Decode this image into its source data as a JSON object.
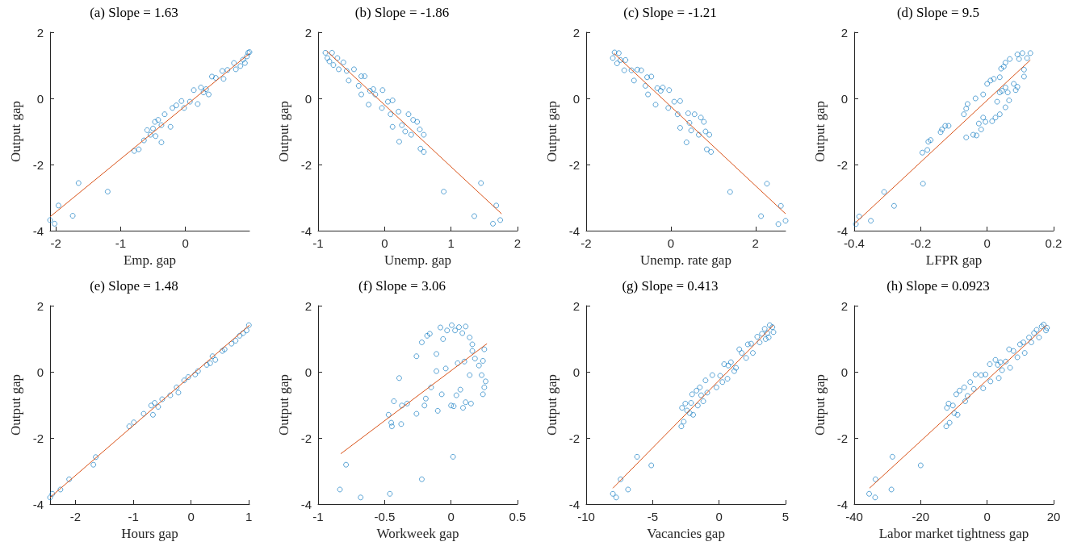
{
  "chart_data": [
    {
      "type": "scatter",
      "title": "(a) Slope = 1.63",
      "xlabel": "Emp. gap",
      "ylabel": "Output gap",
      "xlim": [
        -2.09,
        0.99
      ],
      "xticks": [
        -2,
        -1,
        0
      ],
      "ylim": [
        -4,
        2
      ],
      "yticks": [
        -4,
        -2,
        0,
        2
      ],
      "series": [
        {
          "marker": "circle",
          "color": "#0072bd",
          "x": [
            -2.09,
            -2.02,
            -1.96,
            -1.74,
            -1.65,
            -1.2,
            -0.79,
            -0.72,
            -0.64,
            -0.59,
            -0.54,
            -0.5,
            -0.46,
            -0.47,
            -0.42,
            -0.37,
            -0.37,
            -0.32,
            -0.23,
            -0.2,
            -0.14,
            -0.06,
            -0.02,
            0.07,
            0.19,
            0.13,
            0.24,
            0.28,
            0.32,
            0.36,
            0.41,
            0.47,
            0.57,
            0.59,
            0.65,
            0.75,
            0.78,
            0.85,
            0.89,
            0.92,
            0.95,
            0.97,
            0.99
          ],
          "values": [
            -3.68,
            -3.79,
            -3.24,
            -3.55,
            -2.56,
            -2.82,
            -1.59,
            -1.54,
            -1.27,
            -0.96,
            -1.1,
            -0.91,
            -1.14,
            -0.71,
            -0.65,
            -1.33,
            -0.81,
            -0.48,
            -0.86,
            -0.29,
            -0.21,
            -0.08,
            -0.29,
            -0.1,
            -0.17,
            0.25,
            0.33,
            0.18,
            0.28,
            0.12,
            0.66,
            0.62,
            0.83,
            0.59,
            0.86,
            1.07,
            0.88,
            0.98,
            1.17,
            1.07,
            1.27,
            1.38,
            1.4
          ]
        },
        {
          "type": "line",
          "color": "#d95319",
          "x": [
            -2.09,
            0.99
          ],
          "values": [
            -3.58,
            1.36
          ]
        }
      ]
    },
    {
      "type": "scatter",
      "title": "(b) Slope = -1.86",
      "xlabel": "Unemp. gap",
      "ylabel": "Output gap",
      "xlim": [
        -1,
        2
      ],
      "xticks": [
        -1,
        0,
        1,
        2
      ],
      "ylim": [
        -4,
        2
      ],
      "yticks": [
        -4,
        -2,
        0,
        2
      ],
      "series": [
        {
          "marker": "circle",
          "color": "#0072bd",
          "x": [
            -0.89,
            -0.86,
            -0.83,
            -0.79,
            -0.77,
            -0.71,
            -0.69,
            -0.62,
            -0.57,
            -0.54,
            -0.46,
            -0.39,
            -0.35,
            -0.3,
            -0.35,
            -0.24,
            -0.22,
            -0.17,
            -0.14,
            -0.03,
            -0.04,
            0.05,
            0.12,
            0.09,
            0.12,
            0.21,
            0.22,
            0.26,
            0.31,
            0.36,
            0.43,
            0.4,
            0.49,
            0.53,
            0.59,
            0.54,
            0.59,
            0.89,
            1.35,
            1.45,
            1.63,
            1.68,
            1.74
          ],
          "values": [
            1.38,
            1.22,
            1.12,
            1.38,
            1.01,
            1.22,
            0.88,
            1.09,
            0.83,
            0.54,
            0.88,
            0.38,
            0.67,
            0.67,
            0.12,
            -0.19,
            0.23,
            0.28,
            0.12,
            0.25,
            -0.29,
            -0.1,
            -0.06,
            -0.48,
            -0.86,
            -0.4,
            -1.31,
            -0.81,
            -1.0,
            -0.48,
            -0.65,
            -1.1,
            -0.71,
            -0.94,
            -1.1,
            -1.52,
            -1.62,
            -2.82,
            -3.56,
            -2.56,
            -3.79,
            -3.24,
            -3.68
          ]
        },
        {
          "type": "line",
          "color": "#d95319",
          "x": [
            -0.87,
            1.76
          ],
          "values": [
            1.43,
            -3.49
          ]
        }
      ]
    },
    {
      "type": "scatter",
      "title": "(c) Slope = -1.21",
      "xlabel": "Unemp. rate gap",
      "ylabel": "Output gap",
      "xlim": [
        -2,
        2.71
      ],
      "xticks": [
        -2,
        0,
        2
      ],
      "ylim": [
        -4,
        2
      ],
      "yticks": [
        -4,
        -2,
        0,
        2
      ],
      "series": [
        {
          "marker": "circle",
          "color": "#0072bd",
          "x": [
            -1.37,
            -1.33,
            -1.23,
            -1.27,
            -1.19,
            -1.1,
            -1.07,
            -0.93,
            -0.87,
            -0.79,
            -0.7,
            -0.6,
            -0.56,
            -0.46,
            -0.54,
            -0.36,
            -0.32,
            -0.24,
            -0.19,
            -0.04,
            -0.06,
            0.08,
            0.22,
            0.16,
            0.22,
            0.41,
            0.37,
            0.44,
            0.48,
            0.56,
            0.71,
            0.66,
            0.78,
            0.82,
            0.91,
            0.85,
            0.95,
            1.4,
            2.13,
            2.27,
            2.54,
            2.6,
            2.71
          ],
          "values": [
            1.22,
            1.39,
            1.37,
            1.06,
            1.16,
            0.85,
            1.16,
            0.85,
            0.54,
            0.87,
            0.85,
            0.38,
            0.64,
            0.66,
            0.12,
            -0.19,
            0.31,
            0.23,
            0.33,
            0.25,
            -0.29,
            -0.1,
            -0.08,
            -0.48,
            -0.89,
            -0.45,
            -1.33,
            -0.74,
            -0.97,
            -0.48,
            -0.58,
            -1.1,
            -0.71,
            -1.0,
            -1.1,
            -1.54,
            -1.62,
            -2.83,
            -3.56,
            -2.58,
            -3.8,
            -3.25,
            -3.7
          ]
        },
        {
          "type": "line",
          "color": "#d95319",
          "x": [
            -1.35,
            2.71
          ],
          "values": [
            1.37,
            -3.49
          ]
        }
      ]
    },
    {
      "type": "scatter",
      "title": "(d) Slope = 9.5",
      "xlabel": "LFPR gap",
      "ylabel": "Output gap",
      "xlim": [
        -0.4,
        0.2
      ],
      "xticks": [
        -0.4,
        -0.2,
        0,
        0.2
      ],
      "ylim": [
        -4,
        2
      ],
      "yticks": [
        -4,
        -2,
        0,
        2
      ],
      "series": [
        {
          "marker": "circle",
          "color": "#0072bd",
          "x": [
            -0.395,
            -0.385,
            -0.35,
            -0.31,
            -0.28,
            -0.193,
            -0.195,
            -0.18,
            -0.177,
            -0.17,
            -0.14,
            -0.136,
            -0.126,
            -0.116,
            -0.07,
            -0.063,
            -0.059,
            -0.063,
            -0.042,
            -0.032,
            -0.025,
            -0.018,
            -0.012,
            -0.035,
            -0.012,
            0,
            0.01,
            0.02,
            -0.005,
            0.015,
            0.025,
            0.038,
            0.03,
            0.038,
            0.045,
            0.055,
            0.062,
            0.066,
            0.055,
            0.038,
            0.042,
            0.05,
            0.055,
            0.068,
            0.08,
            0.086,
            0.091,
            0.091,
            0.096,
            0.106,
            0.111,
            0.111,
            0.12,
            0.13
          ],
          "values": [
            -3.8,
            -3.57,
            -3.7,
            -2.83,
            -3.25,
            -2.58,
            -1.64,
            -1.56,
            -1.31,
            -1.26,
            -1.02,
            -0.94,
            -0.83,
            -0.83,
            -0.48,
            -0.31,
            -0.17,
            -1.18,
            -1.1,
            -1.12,
            -0.76,
            -0.94,
            -0.58,
            0,
            0.12,
            0.44,
            0.54,
            0.59,
            -0.71,
            -0.69,
            -0.58,
            -0.48,
            -0.1,
            0.18,
            0.23,
            0.33,
            0.18,
            -0.06,
            -0.27,
            0.64,
            0.9,
            0.96,
            1.08,
            1.19,
            0.44,
            0.25,
            0.35,
            1.33,
            1.19,
            1.37,
            0.87,
            0.66,
            1.22,
            1.37
          ]
        },
        {
          "type": "line",
          "color": "#d95319",
          "x": [
            -0.397,
            0.13
          ],
          "values": [
            -3.77,
            1.16
          ]
        }
      ]
    },
    {
      "type": "scatter",
      "title": "(e) Slope = 1.48",
      "xlabel": "Hours gap",
      "ylabel": "Output gap",
      "xlim": [
        -2.44,
        1.01
      ],
      "xticks": [
        -2,
        -1,
        0,
        1
      ],
      "ylim": [
        -4,
        2
      ],
      "yticks": [
        -4,
        -2,
        0,
        2
      ],
      "series": [
        {
          "marker": "circle",
          "color": "#0072bd",
          "x": [
            -2.44,
            -2.4,
            -2.26,
            -2.11,
            -1.69,
            -1.65,
            -1.07,
            -0.99,
            -0.82,
            -0.69,
            -0.63,
            -0.66,
            -0.57,
            -0.5,
            -0.36,
            -0.25,
            -0.22,
            -0.12,
            -0.05,
            0.07,
            0.12,
            0.27,
            0.33,
            0.42,
            0.37,
            0.54,
            0.58,
            0.7,
            0.77,
            0.84,
            0.9,
            0.96,
            1.0
          ],
          "values": [
            -3.8,
            -3.69,
            -3.56,
            -3.25,
            -2.81,
            -2.58,
            -1.65,
            -1.53,
            -1.27,
            -1.02,
            -0.94,
            -1.3,
            -1.06,
            -0.83,
            -0.71,
            -0.47,
            -0.63,
            -0.26,
            -0.16,
            -0.08,
            0.02,
            0.21,
            0.26,
            0.36,
            0.47,
            0.63,
            0.68,
            0.85,
            0.94,
            1.09,
            1.17,
            1.25,
            1.41
          ]
        },
        {
          "type": "line",
          "color": "#d95319",
          "x": [
            -2.44,
            1.01
          ],
          "values": [
            -3.8,
            1.41
          ]
        }
      ]
    },
    {
      "type": "scatter",
      "title": "(f) Slope = 3.06",
      "xlabel": "Workweek gap",
      "ylabel": "Output gap",
      "xlim": [
        -1,
        0.5
      ],
      "xticks": [
        -1,
        -0.5,
        0,
        0.5
      ],
      "ylim": [
        -4,
        2
      ],
      "yticks": [
        -4,
        -2,
        0,
        2
      ],
      "series": [
        {
          "marker": "circle",
          "color": "#0072bd",
          "x": [
            -0.836,
            -0.79,
            -0.68,
            -0.46,
            -0.22,
            0.015,
            -0.47,
            -0.45,
            -0.445,
            -0.375,
            -0.43,
            -0.37,
            -0.33,
            -0.39,
            -0.26,
            -0.2,
            -0.19,
            -0.15,
            -0.11,
            -0.1,
            -0.07,
            0,
            0.02,
            0.04,
            0.07,
            0.09,
            0.11,
            0.15,
            -0.26,
            -0.22,
            -0.18,
            -0.16,
            -0.11,
            -0.08,
            -0.06,
            -0.04,
            -0.03,
            0.005,
            0.03,
            0.05,
            0.06,
            0.085,
            0.1,
            0.11,
            0.14,
            0.14,
            0.16,
            0.16,
            0.18,
            0.21,
            0.24,
            0.23,
            0.25,
            0.24,
            0.25,
            0.26
          ],
          "values": [
            -3.56,
            -2.81,
            -3.8,
            -3.69,
            -3.25,
            -2.57,
            -1.3,
            -1.54,
            -1.65,
            -1.58,
            -0.89,
            -1.02,
            -0.96,
            -0.19,
            -1.27,
            -1.02,
            -0.81,
            -0.47,
            0.02,
            -1.18,
            -0.68,
            -1.02,
            -1.04,
            -0.71,
            -0.54,
            -1.09,
            -0.92,
            -0.96,
            0.47,
            0.89,
            1.09,
            1.15,
            0.54,
            1.34,
            0.99,
            0.1,
            1.25,
            1.41,
            1.25,
            0.26,
            1.35,
            1.17,
            0.31,
            1.37,
            1.04,
            -0.1,
            0.83,
            0.63,
            0.4,
            0.19,
            0.33,
            -0.1,
            0.68,
            -0.68,
            -0.47,
            -0.29
          ]
        },
        {
          "type": "line",
          "color": "#d95319",
          "x": [
            -0.83,
            0.27
          ],
          "values": [
            -2.48,
            0.85
          ]
        }
      ]
    },
    {
      "type": "scatter",
      "title": "(g) Slope = 0.413",
      "xlabel": "Vacancies gap",
      "ylabel": "Output gap",
      "xlim": [
        -10,
        5
      ],
      "xticks": [
        -10,
        -5,
        0,
        5
      ],
      "ylim": [
        -4,
        2
      ],
      "yticks": [
        -4,
        -2,
        0,
        2
      ],
      "series": [
        {
          "marker": "circle",
          "color": "#0072bd",
          "x": [
            -7.99,
            -7.74,
            -7.41,
            -6.85,
            -6.17,
            -5.1,
            -2.84,
            -2.66,
            -2.79,
            -2.54,
            -2.41,
            -2.21,
            -2.11,
            -2.03,
            -1.95,
            -1.7,
            -1.6,
            -1.45,
            -1.35,
            -1.19,
            -1.02,
            -0.89,
            -0.51,
            -0.2,
            0.08,
            0.25,
            0.38,
            0.63,
            0.69,
            0.89,
            1.14,
            1.27,
            1.52,
            1.7,
            2.03,
            2.16,
            2.41,
            2.54,
            2.87,
            3.05,
            3.22,
            3.43,
            3.5,
            3.63,
            3.73,
            3.81,
            4.01,
            4.09
          ],
          "values": [
            -3.69,
            -3.8,
            -3.25,
            -3.56,
            -2.57,
            -2.83,
            -1.65,
            -1.51,
            -1.09,
            -0.96,
            -1.17,
            -1.25,
            -0.94,
            -0.68,
            -1.3,
            -0.57,
            -1.02,
            -0.47,
            -0.71,
            -0.89,
            -0.26,
            -0.63,
            -0.1,
            -0.47,
            -0.12,
            -0.31,
            0.23,
            -0.21,
            0.19,
            0.29,
            0.02,
            0.12,
            0.68,
            0.57,
            0.42,
            0.83,
            0.85,
            0.57,
            1.06,
            0.89,
            1.15,
            1.3,
            0.99,
            1.17,
            1.04,
            1.41,
            1.35,
            1.2
          ]
        },
        {
          "type": "line",
          "color": "#d95319",
          "x": [
            -7.99,
            4.09
          ],
          "values": [
            -3.52,
            1.41
          ]
        }
      ]
    },
    {
      "type": "scatter",
      "title": "(h) Slope = 0.0923",
      "xlabel": "Labor market tightness gap",
      "ylabel": "Output gap",
      "xlim": [
        -40,
        20
      ],
      "xticks": [
        -40,
        -20,
        0,
        20
      ],
      "ylim": [
        -4,
        2
      ],
      "yticks": [
        -4,
        -2,
        0,
        2
      ],
      "series": [
        {
          "marker": "circle",
          "color": "#0072bd",
          "x": [
            -35.5,
            -33.7,
            -33.6,
            -28.8,
            -28.5,
            -20,
            -12.3,
            -11.3,
            -12.1,
            -11.6,
            -10.3,
            -9.9,
            -9.3,
            -8.9,
            -8.3,
            -6.9,
            -6.6,
            -5.9,
            -5.1,
            -4,
            -3.5,
            -1.8,
            -1.2,
            -0.5,
            0.8,
            1,
            2.5,
            3.2,
            3.5,
            4,
            4.5,
            5.6,
            6.6,
            6.9,
            7.9,
            9.1,
            9.9,
            10.9,
            11.3,
            12.6,
            13.3,
            14.1,
            14.9,
            15.6,
            16.4,
            17,
            17.7,
            18
          ],
          "values": [
            -3.69,
            -3.8,
            -3.25,
            -3.56,
            -2.57,
            -2.83,
            -1.65,
            -1.54,
            -1.09,
            -0.96,
            -1.02,
            -1.25,
            -0.68,
            -1.3,
            -0.57,
            -0.47,
            -0.89,
            -0.73,
            -0.31,
            -0.52,
            -0.08,
            -0.1,
            -0.5,
            -0.08,
            0.23,
            -0.29,
            0.36,
            0.21,
            -0.19,
            0.29,
            0.05,
            0.31,
            0.68,
            0.12,
            0.63,
            0.44,
            0.83,
            0.89,
            0.57,
            1.04,
            0.89,
            1.17,
            1.27,
            1.04,
            1.37,
            1.43,
            1.25,
            1.33
          ]
        },
        {
          "type": "line",
          "color": "#d95319",
          "x": [
            -35.4,
            17.9
          ],
          "values": [
            -3.52,
            1.41
          ]
        }
      ]
    }
  ]
}
